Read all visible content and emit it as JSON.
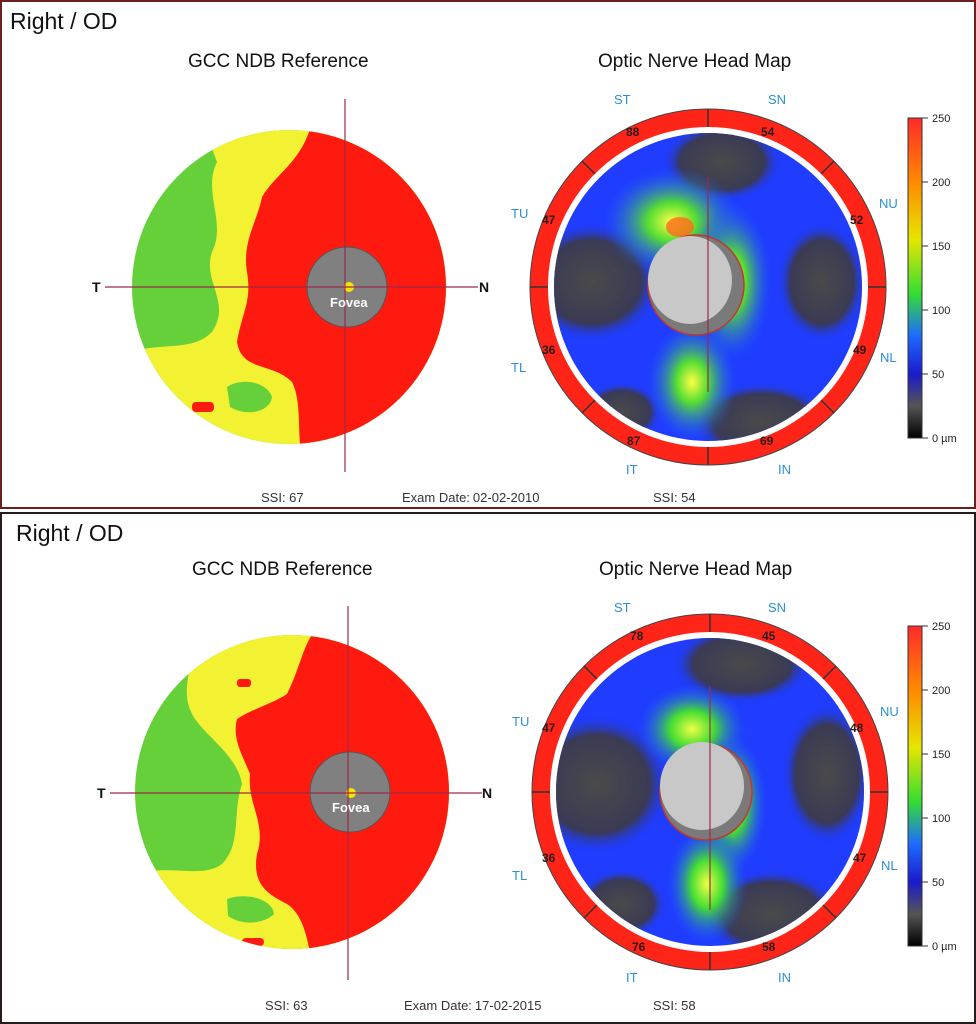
{
  "panels": [
    {
      "eye": "Right / OD",
      "gcc_title": "GCC NDB Reference",
      "onh_title": "Optic Nerve Head Map",
      "gcc_axis": {
        "left": "T",
        "right": "N"
      },
      "fovea_label": "Fovea",
      "sectors": {
        "ST": "ST",
        "SN": "SN",
        "NU": "NU",
        "NL": "NL",
        "IN": "IN",
        "IT": "IT",
        "TL": "TL",
        "TU": "TU"
      },
      "ring_values": {
        "ST": "88",
        "SN": "54",
        "NU": "52",
        "NL": "49",
        "IN": "69",
        "IT": "87",
        "TL": "36",
        "TU": "47"
      },
      "footer": {
        "gcc_ssi": "SSI: 67",
        "exam_label": "Exam Date:",
        "exam_date": "02-02-2010",
        "onh_ssi": "SSI: 54"
      }
    },
    {
      "eye": "Right / OD",
      "gcc_title": "GCC NDB Reference",
      "onh_title": "Optic Nerve Head Map",
      "gcc_axis": {
        "left": "T",
        "right": "N"
      },
      "fovea_label": "Fovea",
      "sectors": {
        "ST": "ST",
        "SN": "SN",
        "NU": "NU",
        "NL": "NL",
        "IN": "IN",
        "IT": "IT",
        "TL": "TL",
        "TU": "TU"
      },
      "ring_values": {
        "ST": "78",
        "SN": "45",
        "NU": "48",
        "NL": "47",
        "IN": "58",
        "IT": "76",
        "TL": "36",
        "TU": "47"
      },
      "footer": {
        "gcc_ssi": "SSI: 63",
        "exam_label": "Exam Date:",
        "exam_date": "17-02-2015",
        "onh_ssi": "SSI: 58"
      }
    }
  ],
  "color_scale": {
    "ticks": [
      "250",
      "200",
      "150",
      "100",
      "50",
      "0 µm"
    ],
    "stops": [
      "#ff2a2a",
      "#ff8a00",
      "#e6e600",
      "#33dd33",
      "#1e6cff",
      "#1a1acc",
      "#555555",
      "#000000"
    ]
  },
  "colors": {
    "gcc_red": "#ff1a10",
    "gcc_yellow": "#f2f233",
    "gcc_green": "#66d03a",
    "ring_red": "#ff2418",
    "disc_gray": "#c8c8c8",
    "sector_blue": "#2a8fd6"
  }
}
